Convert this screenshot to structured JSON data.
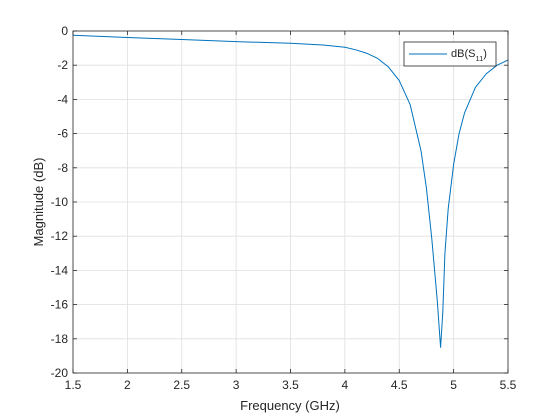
{
  "chart_data": {
    "type": "line",
    "xlabel": "Frequency (GHz)",
    "ylabel": "Magnitude (dB)",
    "xlim": [
      1.5,
      5.5
    ],
    "ylim": [
      -20,
      0
    ],
    "xticks": [
      1.5,
      2,
      2.5,
      3,
      3.5,
      4,
      4.5,
      5,
      5.5
    ],
    "xtick_labels": [
      "1.5",
      "2",
      "2.5",
      "3",
      "3.5",
      "4",
      "4.5",
      "5",
      "5.5"
    ],
    "yticks": [
      0,
      -2,
      -4,
      -6,
      -8,
      -10,
      -12,
      -14,
      -16,
      -18,
      -20
    ],
    "ytick_labels": [
      "0",
      "-2",
      "-4",
      "-6",
      "-8",
      "-10",
      "-12",
      "-14",
      "-16",
      "-18",
      "-20"
    ],
    "grid": true,
    "legend_position": "top-right",
    "series_color": "#0072bd",
    "legend": {
      "main": "dB(S",
      "sub": "11",
      "close": ")"
    },
    "series": [
      {
        "name": "dB(S11)",
        "x": [
          1.5,
          2.0,
          2.5,
          3.0,
          3.5,
          3.8,
          4.0,
          4.1,
          4.2,
          4.3,
          4.4,
          4.5,
          4.6,
          4.7,
          4.75,
          4.8,
          4.85,
          4.88,
          4.9,
          4.92,
          4.95,
          5.0,
          5.05,
          5.1,
          5.2,
          5.3,
          5.4,
          5.5
        ],
        "y": [
          -0.25,
          -0.38,
          -0.5,
          -0.62,
          -0.72,
          -0.82,
          -0.95,
          -1.1,
          -1.3,
          -1.6,
          -2.1,
          -2.9,
          -4.3,
          -7.0,
          -9.2,
          -12.2,
          -15.8,
          -18.5,
          -16.5,
          -13.0,
          -10.4,
          -7.8,
          -6.0,
          -4.8,
          -3.3,
          -2.5,
          -2.0,
          -1.7
        ]
      }
    ]
  }
}
